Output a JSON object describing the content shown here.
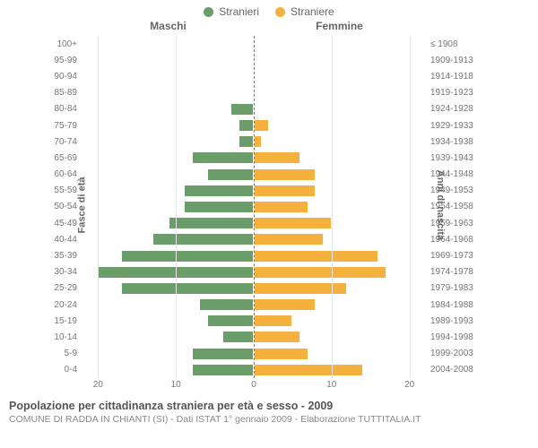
{
  "legend": {
    "male": {
      "label": "Stranieri",
      "color": "#6b9d6b"
    },
    "female": {
      "label": "Straniere",
      "color": "#f5b13d"
    }
  },
  "headers": {
    "male": "Maschi",
    "female": "Femmine"
  },
  "axis_titles": {
    "left": "Fasce di età",
    "right": "Anni di nascita"
  },
  "x_axis": {
    "max": 22,
    "ticks": [
      20,
      10,
      0,
      10,
      20
    ]
  },
  "bg_color": "#ffffff",
  "grid_color": "#e6e6e6",
  "midline_color": "#777",
  "label_color": "#777",
  "bar_border": "#ffffff",
  "rows": [
    {
      "age": "100+",
      "birth": "≤ 1908",
      "m": 0,
      "f": 0
    },
    {
      "age": "95-99",
      "birth": "1909-1913",
      "m": 0,
      "f": 0
    },
    {
      "age": "90-94",
      "birth": "1914-1918",
      "m": 0,
      "f": 0
    },
    {
      "age": "85-89",
      "birth": "1919-1923",
      "m": 0,
      "f": 0
    },
    {
      "age": "80-84",
      "birth": "1924-1928",
      "m": 3,
      "f": 0
    },
    {
      "age": "75-79",
      "birth": "1929-1933",
      "m": 2,
      "f": 2
    },
    {
      "age": "70-74",
      "birth": "1934-1938",
      "m": 2,
      "f": 1
    },
    {
      "age": "65-69",
      "birth": "1939-1943",
      "m": 8,
      "f": 6
    },
    {
      "age": "60-64",
      "birth": "1944-1948",
      "m": 6,
      "f": 8
    },
    {
      "age": "55-59",
      "birth": "1949-1953",
      "m": 9,
      "f": 8
    },
    {
      "age": "50-54",
      "birth": "1954-1958",
      "m": 9,
      "f": 7
    },
    {
      "age": "45-49",
      "birth": "1959-1963",
      "m": 11,
      "f": 10
    },
    {
      "age": "40-44",
      "birth": "1964-1968",
      "m": 13,
      "f": 9
    },
    {
      "age": "35-39",
      "birth": "1969-1973",
      "m": 17,
      "f": 16
    },
    {
      "age": "30-34",
      "birth": "1974-1978",
      "m": 20,
      "f": 17
    },
    {
      "age": "25-29",
      "birth": "1979-1983",
      "m": 17,
      "f": 12
    },
    {
      "age": "20-24",
      "birth": "1984-1988",
      "m": 7,
      "f": 8
    },
    {
      "age": "15-19",
      "birth": "1989-1993",
      "m": 6,
      "f": 5
    },
    {
      "age": "10-14",
      "birth": "1994-1998",
      "m": 4,
      "f": 6
    },
    {
      "age": "5-9",
      "birth": "1999-2003",
      "m": 8,
      "f": 7
    },
    {
      "age": "0-4",
      "birth": "2004-2008",
      "m": 8,
      "f": 14
    }
  ],
  "caption": {
    "title": "Popolazione per cittadinanza straniera per età e sesso - 2009",
    "sub": "COMUNE DI RADDA IN CHIANTI (SI) - Dati ISTAT 1° gennaio 2009 - Elaborazione TUTTITALIA.IT"
  }
}
